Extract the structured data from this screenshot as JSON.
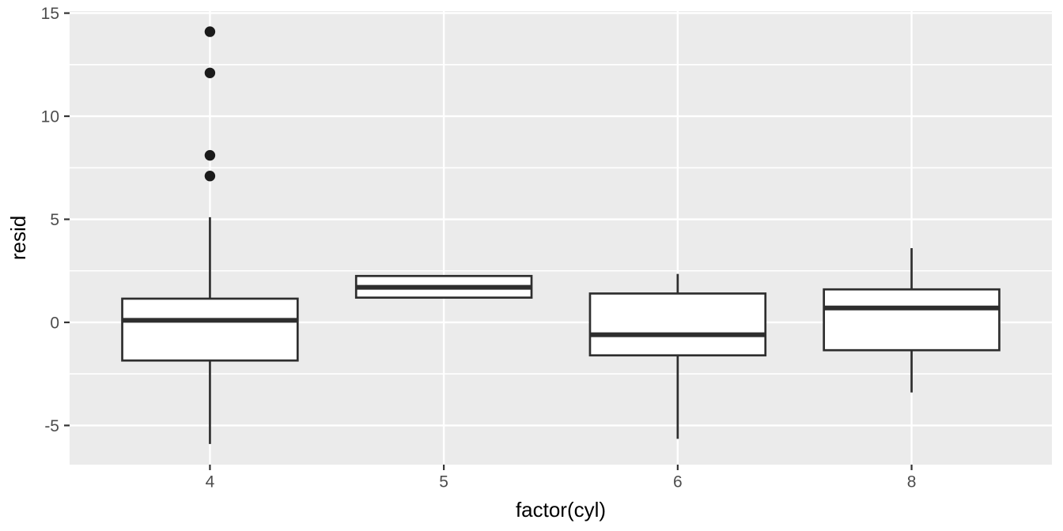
{
  "figure": {
    "background": "#FFFFFF"
  },
  "chart_data": {
    "type": "boxplot",
    "title": "",
    "xlabel": "factor(cyl)",
    "ylabel": "resid",
    "categories": [
      "4",
      "5",
      "6",
      "8"
    ],
    "series": [
      {
        "category": "4",
        "lower_whisker": -5.9,
        "q1": -1.85,
        "median": 0.1,
        "q3": 1.15,
        "upper_whisker": 5.1,
        "outliers": [
          7.1,
          8.1,
          12.1,
          14.1
        ]
      },
      {
        "category": "5",
        "lower_whisker": 1.2,
        "q1": 1.2,
        "median": 1.7,
        "q3": 2.25,
        "upper_whisker": 2.25,
        "outliers": []
      },
      {
        "category": "6",
        "lower_whisker": -5.65,
        "q1": -1.6,
        "median": -0.6,
        "q3": 1.4,
        "upper_whisker": 2.35,
        "outliers": []
      },
      {
        "category": "8",
        "lower_whisker": -3.4,
        "q1": -1.35,
        "median": 0.7,
        "q3": 1.6,
        "upper_whisker": 3.6,
        "outliers": []
      }
    ],
    "y_axis": {
      "range": [
        -6.9,
        15.1
      ],
      "ticks": [
        {
          "value": -5,
          "label": "-5"
        },
        {
          "value": 0,
          "label": "0"
        },
        {
          "value": 5,
          "label": "5"
        },
        {
          "value": 10,
          "label": "10"
        },
        {
          "value": 15,
          "label": "15"
        }
      ],
      "minor_ticks": [
        -2.5,
        2.5,
        7.5,
        12.5
      ]
    },
    "x_axis": {
      "ticks": [
        {
          "label": "4"
        },
        {
          "label": "5"
        },
        {
          "label": "6"
        },
        {
          "label": "8"
        }
      ]
    },
    "legend": "none",
    "grid": {
      "major": true,
      "minor": true
    },
    "style": {
      "panel_background": "#EBEBEB",
      "grid_color": "#FFFFFF",
      "box_fill": "#FFFFFF",
      "box_border": "#2E2E2E",
      "median_color": "#2E2E2E",
      "whisker_color": "#2E2E2E",
      "outlier_color": "#1A1A1A",
      "tick_mark_color": "#333333",
      "tick_label_color": "#4D4D4D",
      "axis_title_color": "#000000"
    }
  }
}
